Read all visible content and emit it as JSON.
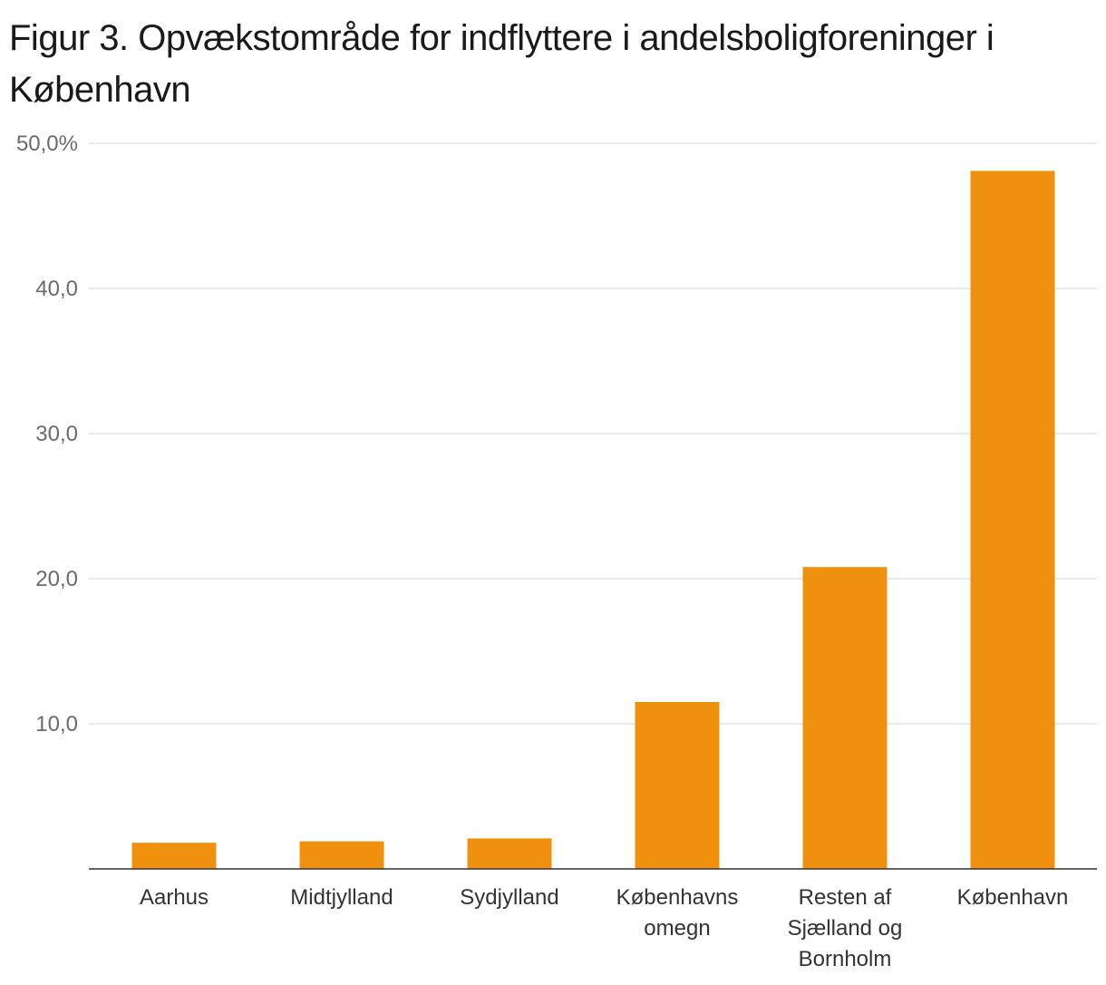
{
  "chart_data": {
    "type": "bar",
    "title": "Figur 3. Opvækstområde for indflyttere i andelsboligforeninger i København",
    "xlabel": "",
    "ylabel": "",
    "categories": [
      [
        "Aarhus"
      ],
      [
        "Midtjylland"
      ],
      [
        "Sydjylland"
      ],
      [
        "Københavns",
        "omegn"
      ],
      [
        "Resten af",
        "Sjælland og",
        "Bornholm"
      ],
      [
        "København"
      ]
    ],
    "values": [
      1.8,
      1.9,
      2.1,
      11.5,
      20.8,
      48.1
    ],
    "ylim": [
      0,
      50
    ],
    "yticks": [
      10,
      20,
      30,
      40,
      50
    ],
    "ytick_labels": [
      "10,0",
      "20,0",
      "30,0",
      "40,0",
      "50,0%"
    ],
    "grid": true,
    "legend": "none",
    "colors": {
      "bar": "#F0900F",
      "grid": "#e3e3e3",
      "axis": "#333333"
    }
  }
}
